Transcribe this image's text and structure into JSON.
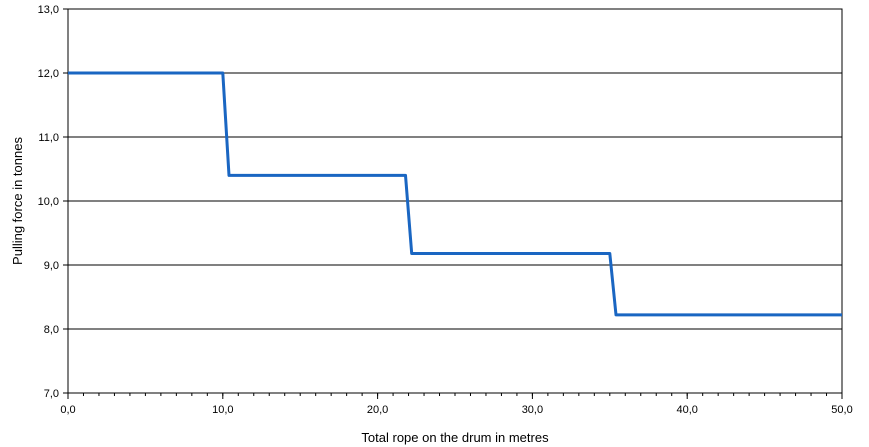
{
  "chart_data": {
    "type": "line",
    "title": "",
    "xlabel": "Total rope on the drum in metres",
    "ylabel": "Pulling force in tonnes",
    "xlim": [
      0,
      50
    ],
    "ylim": [
      7,
      13
    ],
    "x_ticks": [
      0,
      10,
      20,
      30,
      40,
      50
    ],
    "x_tick_labels": [
      "0,0",
      "10,0",
      "20,0",
      "30,0",
      "40,0",
      "50,0"
    ],
    "y_ticks": [
      7,
      8,
      9,
      10,
      11,
      12,
      13
    ],
    "y_tick_labels": [
      "7,0",
      "8,0",
      "9,0",
      "10,0",
      "11,0",
      "12,0",
      "13,0"
    ],
    "x_minor_step": 1,
    "grid": "horizontal",
    "legend": "none",
    "series": [
      {
        "color": "#1a66c2",
        "x": [
          0,
          10,
          10.4,
          21.8,
          22.2,
          35,
          35.4,
          50
        ],
        "y": [
          12.0,
          12.0,
          10.4,
          10.4,
          9.18,
          9.18,
          8.22,
          8.22
        ]
      }
    ]
  }
}
